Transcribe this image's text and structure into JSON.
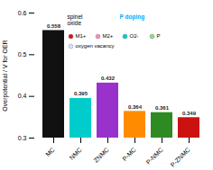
{
  "chart_data": {
    "type": "bar",
    "categories": [
      "MC",
      "NMC",
      "ZNMC",
      "P-MC",
      "P-NMC",
      "P-ZNMC"
    ],
    "values": [
      0.558,
      0.395,
      0.432,
      0.364,
      0.361,
      0.349
    ],
    "colors": [
      "#111111",
      "#00CCCC",
      "#9932CC",
      "#FF8C00",
      "#2E8B22",
      "#CC1111"
    ],
    "ylabel": "Overpotential / V for OER",
    "ylim": [
      0.3,
      0.6
    ],
    "yticks": [
      0.3,
      0.4,
      0.5,
      0.6
    ],
    "grid": false,
    "data_labels": true,
    "annotations": [
      {
        "text": "spinel\noxide"
      },
      {
        "text": "P doping",
        "color": "#00AAFF"
      },
      {
        "text": "M1+",
        "marker_color": "#DD1111"
      },
      {
        "text": "M2+",
        "marker_color": "#FF88BB"
      },
      {
        "text": "O2-",
        "marker_color": "#00CCCC"
      },
      {
        "text": "P",
        "marker_color": "#88DD88"
      },
      {
        "text": "oxygen vacancy",
        "marker_color": "#DDDDFF"
      }
    ]
  }
}
